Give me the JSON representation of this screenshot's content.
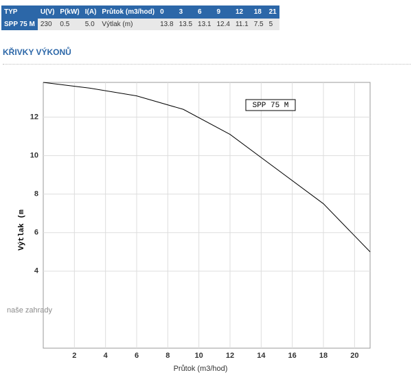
{
  "table": {
    "header": [
      "TYP",
      "U(V)",
      "P(kW)",
      "I(A)",
      "Průtok (m3/hod)",
      "0",
      "3",
      "6",
      "9",
      "12",
      "18",
      "21"
    ],
    "rows": [
      [
        "SPP 75 M",
        "230",
        "0.5",
        "5.0",
        "Výtlak (m)",
        "13.8",
        "13.5",
        "13.1",
        "12.4",
        "11.1",
        "7.5",
        "5"
      ]
    ]
  },
  "heading": "KŘIVKY VÝKONŮ",
  "chart_data": {
    "type": "line",
    "legend_label": "SPP 75 M",
    "x_label": "Průtok (m3/hod)",
    "y_label": "Výtlak (m",
    "watermark": "naše zahrady",
    "x": [
      0,
      3,
      6,
      9,
      12,
      18,
      21
    ],
    "series": [
      {
        "name": "SPP 75 M",
        "color": "#000000",
        "values": [
          13.8,
          13.5,
          13.1,
          12.4,
          11.1,
          7.5,
          5
        ]
      }
    ],
    "xlim": [
      0,
      21
    ],
    "ylim": [
      0,
      13.8
    ],
    "xticks": [
      2,
      4,
      6,
      8,
      10,
      12,
      14,
      16,
      18,
      20
    ],
    "yticks": [
      4,
      6,
      8,
      10,
      12
    ],
    "grid": true
  }
}
